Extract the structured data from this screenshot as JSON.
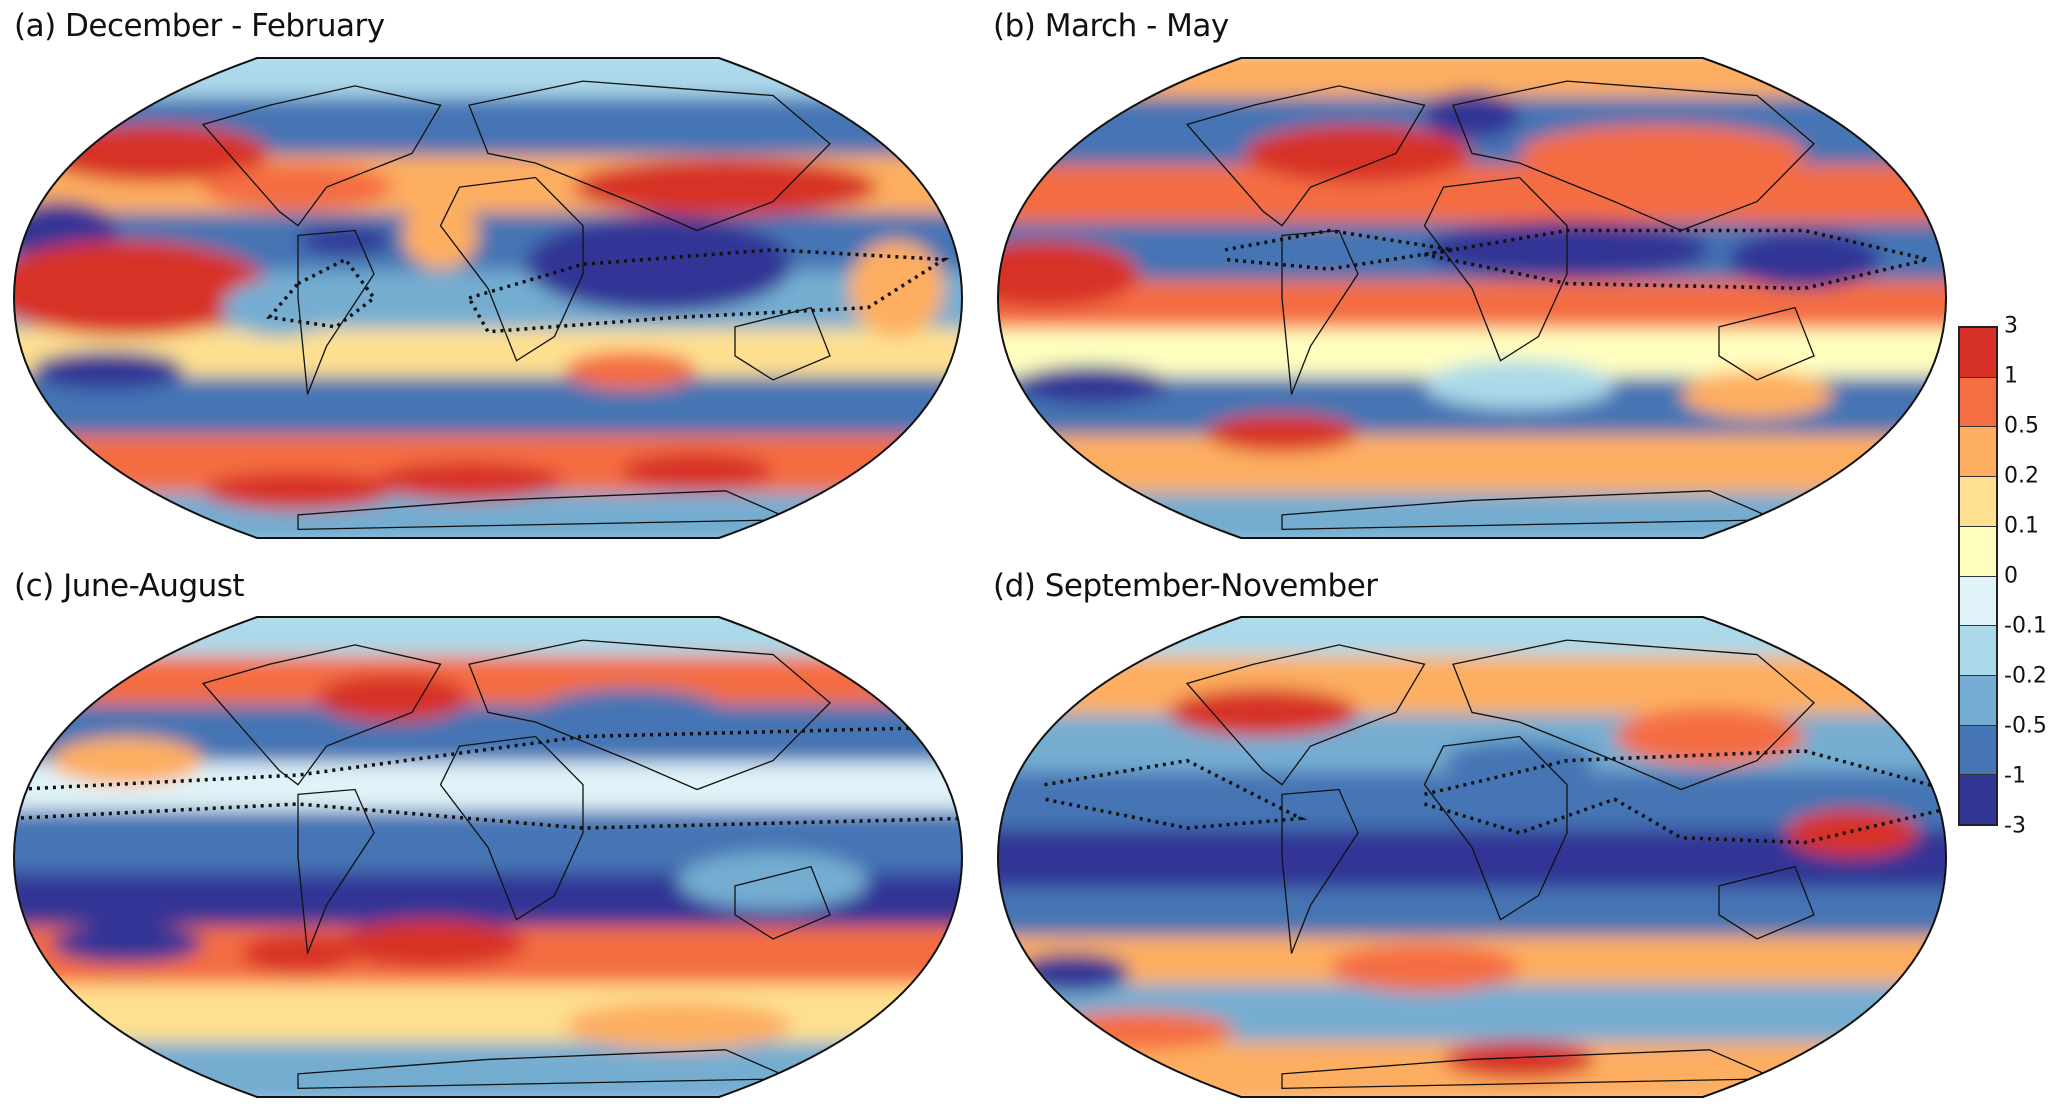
{
  "panels": [
    {
      "id": "a",
      "title": "(a) December - February"
    },
    {
      "id": "b",
      "title": "(b) March - May"
    },
    {
      "id": "c",
      "title": "(c) June-August"
    },
    {
      "id": "d",
      "title": "(d) September-November"
    }
  ],
  "colorbar": {
    "labels": [
      "3",
      "1",
      "0.5",
      "0.2",
      "0.1",
      "0",
      "-0.1",
      "-0.2",
      "-0.5",
      "-1",
      "-3"
    ],
    "colors": [
      "#d73027",
      "#f46d43",
      "#fdae61",
      "#fee090",
      "#ffffbf",
      "#e0f3f8",
      "#abd9e9",
      "#74add1",
      "#4575b4",
      "#313695"
    ]
  }
}
